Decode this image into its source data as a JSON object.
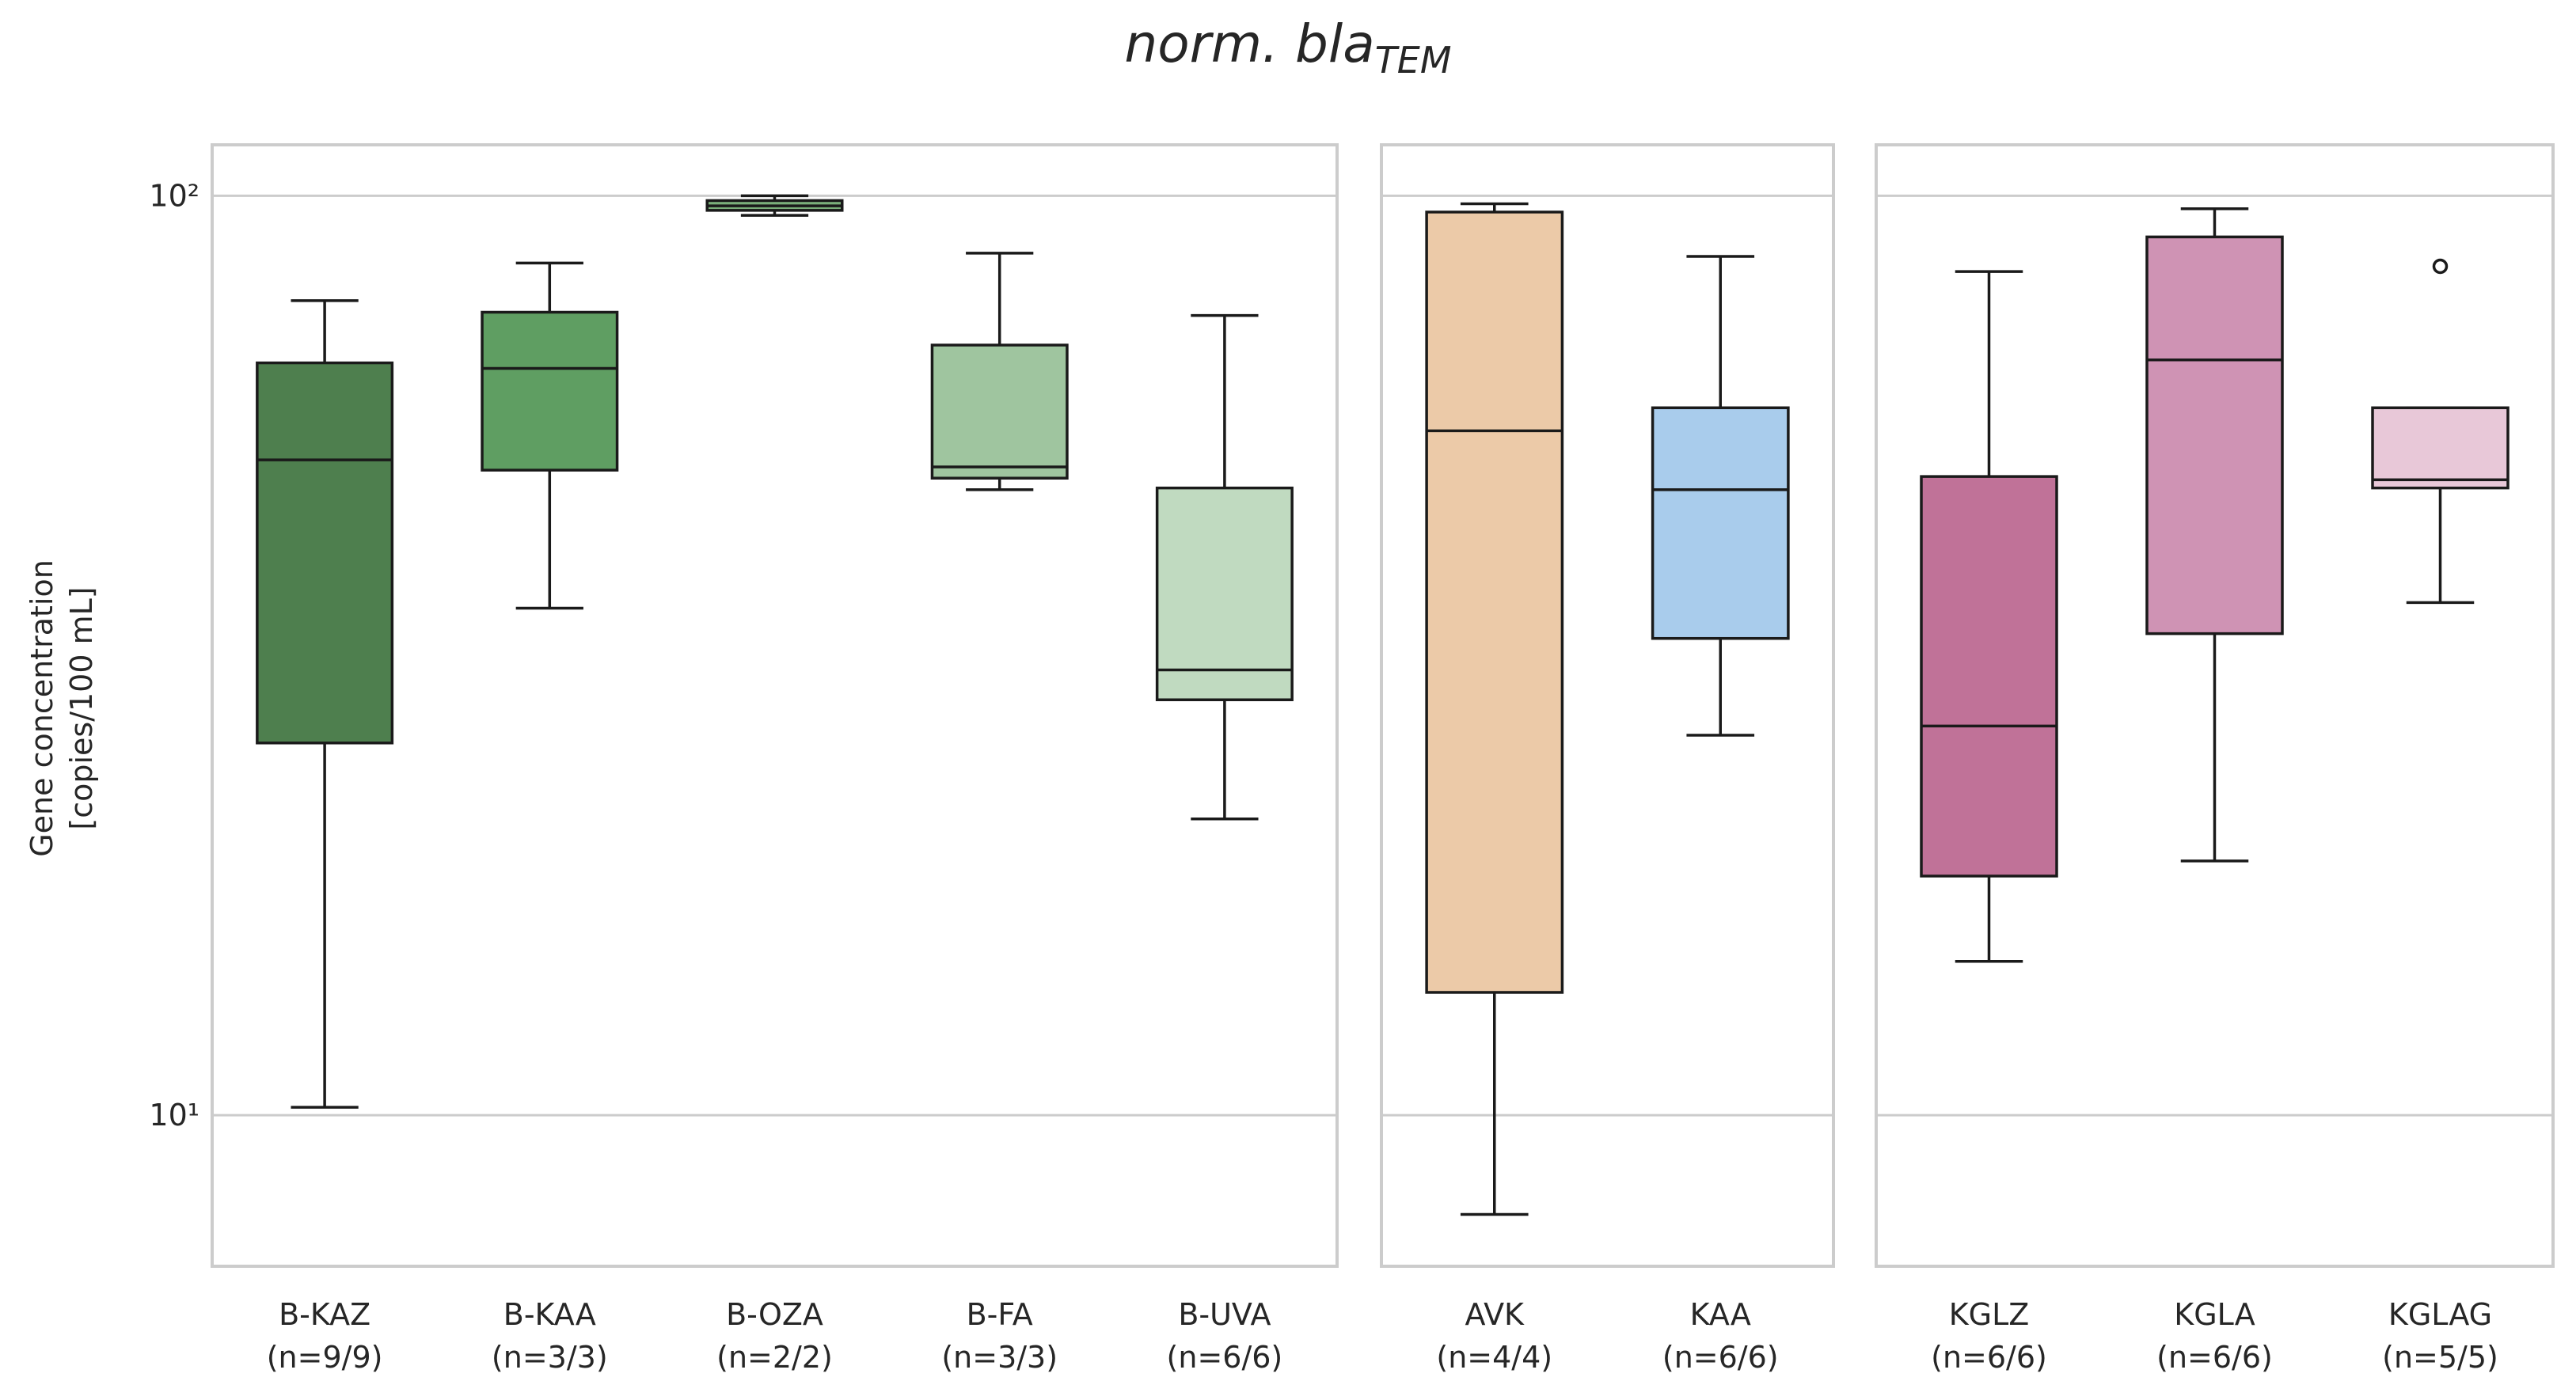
{
  "chart_data": {
    "type": "box",
    "title": "norm. bla",
    "title_subscript": "TEM",
    "ylabel": [
      "Gene concentration",
      "[copies/100 mL]"
    ],
    "log_scale": true,
    "grid": true,
    "ylim": [
      6.85,
      113.6
    ],
    "yticks": [
      {
        "value": 10,
        "label": "10¹"
      },
      {
        "value": 100,
        "label": "10²"
      }
    ],
    "panels": [
      {
        "boxes": [
          {
            "name": "B-KAZ",
            "n": "(n=9/9)",
            "color": "#4e7f4e",
            "whislo": 10.2,
            "q1": 25.4,
            "med": 51.6,
            "q3": 65.8,
            "whishi": 76.9,
            "fliers": []
          },
          {
            "name": "B-KAA",
            "n": "(n=3/3)",
            "color": "#5f9e62",
            "whislo": 35.6,
            "q1": 50.3,
            "med": 64.9,
            "q3": 74.7,
            "whishi": 84.5,
            "fliers": []
          },
          {
            "name": "B-OZA",
            "n": "(n=2/2)",
            "color": "#7aaf7a",
            "whislo": 95.2,
            "q1": 96.4,
            "med": 97.5,
            "q3": 98.8,
            "whishi": 100,
            "fliers": []
          },
          {
            "name": "B-FA",
            "n": "(n=3/3)",
            "color": "#9fc59f",
            "whislo": 47.9,
            "q1": 49.3,
            "med": 50.7,
            "q3": 68.8,
            "whishi": 86.6,
            "fliers": []
          },
          {
            "name": "B-UVA",
            "n": "(n=6/6)",
            "color": "#c0dac0",
            "whislo": 21.0,
            "q1": 28.3,
            "med": 30.5,
            "q3": 48.1,
            "whishi": 74.1,
            "fliers": []
          }
        ]
      },
      {
        "boxes": [
          {
            "name": "AVK",
            "n": "(n=4/4)",
            "color": "#eccaa8",
            "whislo": 7.8,
            "q1": 13.6,
            "med": 55.5,
            "q3": 96.0,
            "whishi": 98.0,
            "fliers": []
          },
          {
            "name": "KAA",
            "n": "(n=6/6)",
            "color": "#a9ccec",
            "whislo": 25.9,
            "q1": 33.0,
            "med": 47.9,
            "q3": 58.8,
            "whishi": 85.9,
            "fliers": []
          }
        ]
      },
      {
        "boxes": [
          {
            "name": "KGLZ",
            "n": "(n=6/6)",
            "color": "#c07298",
            "whislo": 14.7,
            "q1": 18.2,
            "med": 26.5,
            "q3": 49.5,
            "whishi": 82.7,
            "fliers": []
          },
          {
            "name": "KGLA",
            "n": "(n=6/6)",
            "color": "#cf93b4",
            "whislo": 18.9,
            "q1": 33.4,
            "med": 66.3,
            "q3": 90.2,
            "whishi": 96.8,
            "fliers": []
          },
          {
            "name": "KGLAG",
            "n": "(n=5/5)",
            "color": "#e8c8d8",
            "whislo": 36.1,
            "q1": 48.1,
            "med": 49.1,
            "q3": 58.8,
            "whishi": 58.8,
            "fliers": [
              83.8
            ]
          }
        ]
      }
    ]
  }
}
